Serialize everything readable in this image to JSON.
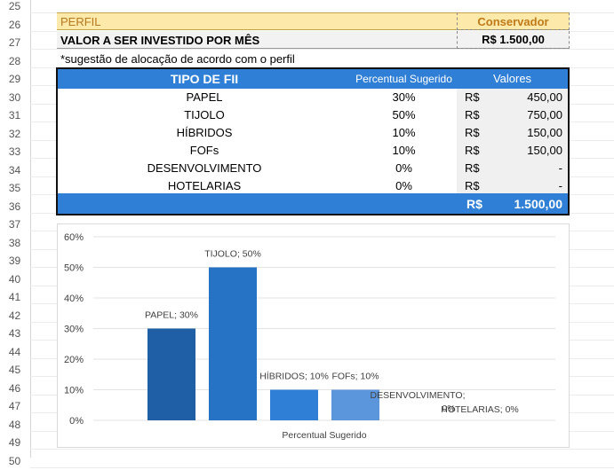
{
  "row_numbers": [
    "25",
    "26",
    "27",
    "28",
    "29",
    "30",
    "31",
    "32",
    "33",
    "34",
    "35",
    "36",
    "37",
    "38",
    "39",
    "40",
    "41",
    "42",
    "43",
    "44",
    "45",
    "46",
    "47",
    "48",
    "49",
    "50"
  ],
  "perfil": {
    "label": "PERFIL",
    "value": "Conservador"
  },
  "valor_mensal": {
    "label": "VALOR A SER INVESTIDO POR MÊS",
    "value": "R$ 1.500,00"
  },
  "nota": "*sugestão de alocação de acordo com o perfil",
  "table": {
    "headers": {
      "tipo": "TIPO DE FII",
      "percentual": "Percentual Sugerido",
      "valores": "Valores"
    },
    "rows": [
      {
        "tipo": "PAPEL",
        "percentual": "30%",
        "moeda": "R$",
        "valor": "450,00"
      },
      {
        "tipo": "TIJOLO",
        "percentual": "50%",
        "moeda": "R$",
        "valor": "750,00"
      },
      {
        "tipo": "HÍBRIDOS",
        "percentual": "10%",
        "moeda": "R$",
        "valor": "150,00"
      },
      {
        "tipo": "FOFs",
        "percentual": "10%",
        "moeda": "R$",
        "valor": "150,00"
      },
      {
        "tipo": "DESENVOLVIMENTO",
        "percentual": "0%",
        "moeda": "R$",
        "valor": "-"
      },
      {
        "tipo": "HOTELARIAS",
        "percentual": "0%",
        "moeda": "R$",
        "valor": "-"
      }
    ],
    "total": {
      "moeda": "R$",
      "valor": "1.500,00"
    }
  },
  "colors": {
    "header_blue": "#2f7fd6",
    "perfil_yellow": "#fde9a9",
    "bar_dark": "#1f5fa6",
    "bar_mid": "#2672c4",
    "bar_light": "#2f7fd6",
    "bar_lighter": "#5b95dc"
  },
  "chart_data": {
    "type": "bar",
    "categories": [
      "PAPEL",
      "TIJOLO",
      "HÍBRIDOS",
      "FOFs",
      "DESENVOLVIMENTO",
      "HOTELARIAS"
    ],
    "values": [
      30,
      50,
      10,
      10,
      0,
      0
    ],
    "data_labels": [
      "PAPEL; 30%",
      "TIJOLO; 50%",
      "HÍBRIDOS; 10%",
      "FOFs; 10%",
      "DESENVOLVIMENTO;|0%",
      "HOTELARIAS; 0%"
    ],
    "bar_colors": [
      "#1f5fa6",
      "#2672c4",
      "#2f7fd6",
      "#5b95dc",
      "#2f7fd6",
      "#2f7fd6"
    ],
    "yticks": [
      "0%",
      "10%",
      "20%",
      "30%",
      "40%",
      "50%",
      "60%"
    ],
    "ylim": [
      0,
      60
    ],
    "xlabel": "Percentual Sugerido",
    "grid": true,
    "legend": "none"
  }
}
